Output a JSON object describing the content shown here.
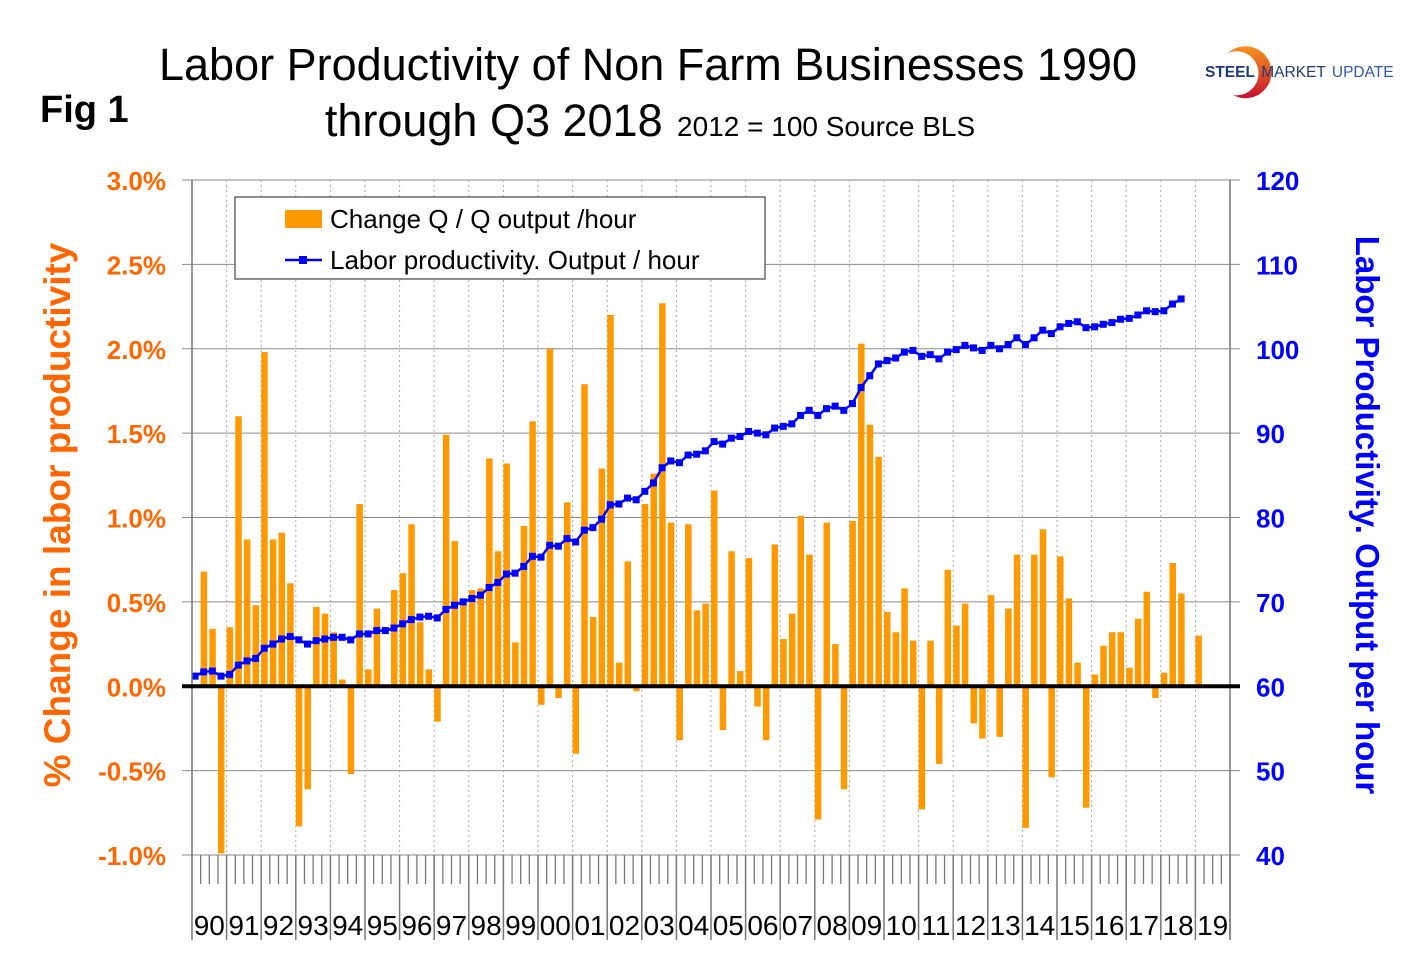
{
  "fig_label": "Fig 1",
  "title_line1": "Labor Productivity of Non Farm Businesses 1990",
  "title_line2": "through Q3 2018",
  "subtitle": "2012 = 100 Source BLS",
  "logo": {
    "text_bold": "STEEL",
    "text_mid": "MARKET",
    "text_light": "UPDATE"
  },
  "colors": {
    "bars": "#FF9900",
    "line": "#0000FF",
    "left_axis": "#FF6600",
    "right_axis": "#0000FF",
    "zero_line": "#000000"
  },
  "chart_data": {
    "type": "bar+line",
    "title": "Labor Productivity of Non Farm Businesses 1990 through Q3 2018",
    "subtitle": "2012 = 100 Source BLS",
    "ylabel_left": "% Change in labor productivity",
    "ylabel_right": "Labor Productivity. Output per hour",
    "ylim_left": [
      -1.0,
      3.0
    ],
    "ylim_right": [
      40,
      120
    ],
    "yticks_left": [
      "-1.0%",
      "-0.5%",
      "0.0%",
      "0.5%",
      "1.0%",
      "1.5%",
      "2.0%",
      "2.5%",
      "3.0%"
    ],
    "yticks_right": [
      "40",
      "50",
      "60",
      "70",
      "80",
      "90",
      "100",
      "110",
      "120"
    ],
    "x_tick_labels": [
      "90",
      "91",
      "92",
      "93",
      "94",
      "95",
      "96",
      "97",
      "98",
      "99",
      "00",
      "01",
      "02",
      "03",
      "04",
      "05",
      "06",
      "07",
      "08",
      "09",
      "10",
      "11",
      "12",
      "13",
      "14",
      "15",
      "16",
      "17",
      "18",
      "19"
    ],
    "quarters_per_year": 4,
    "grid": true,
    "legend_position": "top-left",
    "series": [
      {
        "name": "Change Q / Q output /hour",
        "type": "bar",
        "axis": "left",
        "unit": "%",
        "values": [
          null,
          0.68,
          0.34,
          -0.99,
          0.35,
          1.6,
          0.87,
          0.48,
          1.98,
          0.87,
          0.91,
          0.61,
          -0.83,
          -0.61,
          0.47,
          0.43,
          0.32,
          0.04,
          -0.52,
          1.08,
          0.1,
          0.46,
          0.01,
          0.57,
          0.67,
          0.96,
          0.38,
          0.1,
          -0.21,
          1.49,
          0.86,
          0.49,
          0.57,
          0.58,
          1.35,
          0.8,
          1.32,
          0.26,
          0.95,
          1.57,
          -0.11,
          2.0,
          -0.07,
          1.09,
          -0.4,
          1.79,
          0.41,
          1.29,
          2.2,
          0.14,
          0.74,
          -0.03,
          1.08,
          1.26,
          2.27,
          0.97,
          -0.32,
          0.96,
          0.45,
          0.49,
          1.16,
          -0.26,
          0.8,
          0.09,
          0.76,
          -0.12,
          -0.32,
          0.84,
          0.28,
          0.43,
          1.01,
          0.78,
          -0.79,
          0.97,
          0.25,
          -0.61,
          0.98,
          2.03,
          1.55,
          1.36,
          0.44,
          0.32,
          0.58,
          0.27,
          -0.73,
          0.27,
          -0.46,
          0.69,
          0.36,
          0.49,
          -0.22,
          -0.31,
          0.54,
          -0.3,
          0.46,
          0.78,
          -0.84,
          0.78,
          0.93,
          -0.54,
          0.77,
          0.52,
          0.14,
          -0.72,
          0.07,
          0.24,
          0.32,
          0.32,
          0.11,
          0.4,
          0.56,
          -0.07,
          0.08,
          0.73,
          0.55,
          null,
          0.3,
          null,
          null,
          null
        ]
      },
      {
        "name": "Labor productivity. Output / hour",
        "type": "line",
        "axis": "right",
        "values": [
          61.2,
          61.7,
          61.8,
          61.2,
          61.4,
          62.5,
          63.0,
          63.3,
          64.5,
          65.0,
          65.6,
          65.9,
          65.5,
          65.0,
          65.4,
          65.6,
          65.8,
          65.8,
          65.5,
          66.2,
          66.2,
          66.6,
          66.6,
          66.9,
          67.4,
          67.9,
          68.2,
          68.3,
          68.1,
          69.1,
          69.6,
          70.0,
          70.4,
          70.8,
          71.7,
          72.3,
          73.3,
          73.4,
          74.2,
          75.4,
          75.3,
          76.7,
          76.6,
          77.5,
          77.1,
          78.5,
          78.8,
          79.8,
          81.5,
          81.6,
          82.3,
          82.1,
          83.1,
          84.1,
          85.9,
          86.7,
          86.5,
          87.4,
          87.5,
          87.9,
          89.0,
          88.7,
          89.4,
          89.6,
          90.2,
          90.0,
          89.8,
          90.6,
          90.8,
          91.1,
          92.1,
          92.7,
          92.1,
          92.9,
          93.2,
          92.7,
          93.5,
          95.4,
          96.8,
          98.2,
          98.6,
          98.9,
          99.6,
          99.8,
          99.1,
          99.3,
          98.8,
          99.6,
          99.9,
          100.4,
          100.1,
          99.8,
          100.4,
          100.0,
          100.5,
          101.3,
          100.5,
          101.3,
          102.2,
          101.8,
          102.6,
          103.0,
          103.2,
          102.5,
          102.6,
          102.9,
          103.1,
          103.5,
          103.6,
          104.0,
          104.5,
          104.4,
          104.5,
          105.3,
          105.9
        ]
      }
    ]
  }
}
